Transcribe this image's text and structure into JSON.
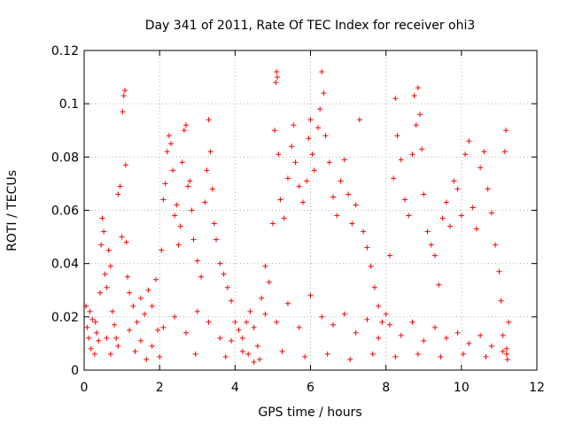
{
  "chart_data": {
    "type": "scatter",
    "title": "Day 341 of 2011, Rate Of TEC Index for receiver ohi3",
    "xlabel": "GPS time / hours",
    "ylabel": "ROTI / TECUs",
    "xlim": [
      0,
      12
    ],
    "ylim": [
      0,
      0.12
    ],
    "xticks": [
      "0",
      "2",
      "4",
      "6",
      "8",
      "10",
      "12"
    ],
    "yticks": [
      "0",
      "0.02",
      "0.04",
      "0.06",
      "0.08",
      "0.1",
      "0.12"
    ],
    "grid": true,
    "marker": "+",
    "color": "#ff0000",
    "series": [
      {
        "points": [
          [
            0.05,
            0.024
          ],
          [
            0.08,
            0.016
          ],
          [
            0.12,
            0.012
          ],
          [
            0.18,
            0.008
          ],
          [
            0.22,
            0.019
          ],
          [
            0.28,
            0.006
          ],
          [
            0.33,
            0.014
          ],
          [
            0.38,
            0.011
          ],
          [
            0.42,
            0.029
          ],
          [
            0.45,
            0.047
          ],
          [
            0.48,
            0.057
          ],
          [
            0.52,
            0.052
          ],
          [
            0.55,
            0.036
          ],
          [
            0.6,
            0.031
          ],
          [
            0.65,
            0.045
          ],
          [
            0.7,
            0.039
          ],
          [
            0.75,
            0.022
          ],
          [
            0.8,
            0.017
          ],
          [
            0.85,
            0.012
          ],
          [
            0.9,
            0.066
          ],
          [
            0.95,
            0.069
          ],
          [
            1.0,
            0.05
          ],
          [
            1.02,
            0.097
          ],
          [
            1.05,
            0.103
          ],
          [
            1.08,
            0.105
          ],
          [
            1.1,
            0.077
          ],
          [
            1.12,
            0.048
          ],
          [
            1.15,
            0.035
          ],
          [
            1.2,
            0.029
          ],
          [
            1.3,
            0.024
          ],
          [
            1.4,
            0.018
          ],
          [
            1.5,
            0.027
          ],
          [
            1.6,
            0.021
          ],
          [
            1.7,
            0.03
          ],
          [
            1.8,
            0.024
          ],
          [
            1.9,
            0.034
          ],
          [
            1.95,
            0.015
          ],
          [
            2.0,
            0.005
          ],
          [
            2.05,
            0.045
          ],
          [
            2.1,
            0.064
          ],
          [
            2.15,
            0.07
          ],
          [
            2.2,
            0.082
          ],
          [
            2.25,
            0.088
          ],
          [
            2.3,
            0.085
          ],
          [
            2.35,
            0.075
          ],
          [
            2.4,
            0.058
          ],
          [
            2.45,
            0.062
          ],
          [
            2.5,
            0.047
          ],
          [
            2.55,
            0.054
          ],
          [
            2.6,
            0.078
          ],
          [
            2.65,
            0.09
          ],
          [
            2.7,
            0.092
          ],
          [
            2.75,
            0.069
          ],
          [
            2.8,
            0.071
          ],
          [
            2.85,
            0.06
          ],
          [
            2.9,
            0.049
          ],
          [
            3.0,
            0.041
          ],
          [
            3.1,
            0.035
          ],
          [
            3.2,
            0.063
          ],
          [
            3.25,
            0.075
          ],
          [
            3.3,
            0.094
          ],
          [
            3.35,
            0.082
          ],
          [
            3.4,
            0.068
          ],
          [
            3.45,
            0.055
          ],
          [
            3.5,
            0.049
          ],
          [
            3.6,
            0.04
          ],
          [
            3.7,
            0.036
          ],
          [
            3.8,
            0.031
          ],
          [
            3.9,
            0.026
          ],
          [
            4.0,
            0.018
          ],
          [
            4.1,
            0.015
          ],
          [
            4.2,
            0.012
          ],
          [
            4.3,
            0.018
          ],
          [
            4.4,
            0.022
          ],
          [
            4.5,
            0.003
          ],
          [
            4.6,
            0.009
          ],
          [
            4.7,
            0.027
          ],
          [
            4.8,
            0.039
          ],
          [
            4.9,
            0.033
          ],
          [
            5.0,
            0.055
          ],
          [
            5.05,
            0.09
          ],
          [
            5.08,
            0.108
          ],
          [
            5.1,
            0.112
          ],
          [
            5.12,
            0.11
          ],
          [
            5.15,
            0.081
          ],
          [
            5.2,
            0.064
          ],
          [
            5.3,
            0.057
          ],
          [
            5.4,
            0.072
          ],
          [
            5.5,
            0.084
          ],
          [
            5.55,
            0.092
          ],
          [
            5.6,
            0.078
          ],
          [
            5.7,
            0.069
          ],
          [
            5.8,
            0.063
          ],
          [
            5.9,
            0.071
          ],
          [
            5.95,
            0.087
          ],
          [
            6.0,
            0.094
          ],
          [
            6.05,
            0.081
          ],
          [
            6.1,
            0.075
          ],
          [
            6.2,
            0.091
          ],
          [
            6.25,
            0.098
          ],
          [
            6.3,
            0.112
          ],
          [
            6.35,
            0.104
          ],
          [
            6.4,
            0.088
          ],
          [
            6.5,
            0.078
          ],
          [
            6.6,
            0.065
          ],
          [
            6.7,
            0.058
          ],
          [
            6.8,
            0.071
          ],
          [
            6.9,
            0.079
          ],
          [
            7.0,
            0.066
          ],
          [
            7.1,
            0.055
          ],
          [
            7.2,
            0.062
          ],
          [
            7.3,
            0.094
          ],
          [
            7.4,
            0.052
          ],
          [
            7.5,
            0.046
          ],
          [
            7.6,
            0.039
          ],
          [
            7.7,
            0.031
          ],
          [
            7.8,
            0.024
          ],
          [
            7.9,
            0.018
          ],
          [
            8.0,
            0.021
          ],
          [
            8.1,
            0.043
          ],
          [
            8.2,
            0.072
          ],
          [
            8.25,
            0.102
          ],
          [
            8.3,
            0.088
          ],
          [
            8.4,
            0.079
          ],
          [
            8.5,
            0.064
          ],
          [
            8.6,
            0.058
          ],
          [
            8.7,
            0.081
          ],
          [
            8.75,
            0.103
          ],
          [
            8.8,
            0.092
          ],
          [
            8.85,
            0.106
          ],
          [
            8.9,
            0.096
          ],
          [
            8.95,
            0.083
          ],
          [
            9.0,
            0.066
          ],
          [
            9.1,
            0.052
          ],
          [
            9.2,
            0.047
          ],
          [
            9.3,
            0.043
          ],
          [
            9.4,
            0.032
          ],
          [
            9.5,
            0.057
          ],
          [
            9.6,
            0.063
          ],
          [
            9.7,
            0.054
          ],
          [
            9.8,
            0.071
          ],
          [
            9.9,
            0.068
          ],
          [
            10.0,
            0.058
          ],
          [
            10.1,
            0.081
          ],
          [
            10.2,
            0.086
          ],
          [
            10.3,
            0.061
          ],
          [
            10.4,
            0.053
          ],
          [
            10.5,
            0.076
          ],
          [
            10.6,
            0.082
          ],
          [
            10.7,
            0.068
          ],
          [
            10.8,
            0.059
          ],
          [
            10.9,
            0.047
          ],
          [
            11.0,
            0.037
          ],
          [
            11.05,
            0.026
          ],
          [
            11.1,
            0.013
          ],
          [
            11.15,
            0.082
          ],
          [
            11.18,
            0.09
          ],
          [
            11.2,
            0.008
          ],
          [
            11.22,
            0.004
          ],
          [
            11.25,
            0.018
          ],
          [
            0.3,
            0.018
          ],
          [
            0.6,
            0.012
          ],
          [
            0.9,
            0.009
          ],
          [
            1.2,
            0.015
          ],
          [
            1.5,
            0.011
          ],
          [
            1.8,
            0.009
          ],
          [
            2.1,
            0.016
          ],
          [
            2.4,
            0.02
          ],
          [
            2.7,
            0.014
          ],
          [
            3.0,
            0.022
          ],
          [
            3.3,
            0.018
          ],
          [
            3.6,
            0.012
          ],
          [
            3.9,
            0.011
          ],
          [
            4.2,
            0.007
          ],
          [
            4.5,
            0.016
          ],
          [
            4.8,
            0.021
          ],
          [
            5.1,
            0.018
          ],
          [
            5.4,
            0.025
          ],
          [
            5.7,
            0.016
          ],
          [
            6.0,
            0.028
          ],
          [
            6.3,
            0.02
          ],
          [
            6.6,
            0.017
          ],
          [
            6.9,
            0.021
          ],
          [
            7.2,
            0.014
          ],
          [
            7.5,
            0.019
          ],
          [
            7.8,
            0.012
          ],
          [
            8.1,
            0.017
          ],
          [
            8.4,
            0.013
          ],
          [
            8.7,
            0.018
          ],
          [
            9.0,
            0.011
          ],
          [
            9.3,
            0.016
          ],
          [
            9.6,
            0.012
          ],
          [
            9.9,
            0.014
          ],
          [
            10.2,
            0.01
          ],
          [
            10.5,
            0.013
          ],
          [
            10.8,
            0.009
          ],
          [
            11.1,
            0.007
          ],
          [
            0.15,
            0.022
          ],
          [
            0.7,
            0.006
          ],
          [
            1.35,
            0.007
          ],
          [
            1.65,
            0.004
          ],
          [
            2.95,
            0.006
          ],
          [
            3.75,
            0.005
          ],
          [
            4.35,
            0.006
          ],
          [
            4.65,
            0.004
          ],
          [
            5.25,
            0.007
          ],
          [
            5.85,
            0.005
          ],
          [
            6.45,
            0.006
          ],
          [
            7.05,
            0.004
          ],
          [
            7.65,
            0.006
          ],
          [
            8.25,
            0.005
          ],
          [
            8.85,
            0.006
          ],
          [
            9.45,
            0.005
          ],
          [
            10.05,
            0.006
          ],
          [
            10.65,
            0.005
          ],
          [
            11.2,
            0.006
          ]
        ]
      }
    ]
  }
}
